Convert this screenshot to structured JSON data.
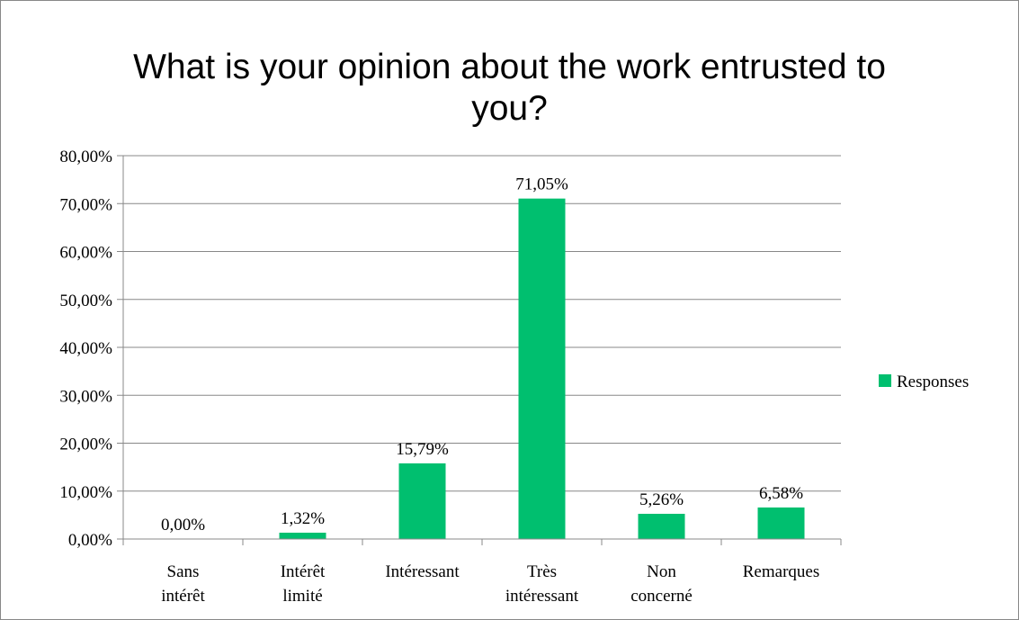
{
  "chart_data": {
    "type": "bar",
    "title": "What is your opinion about the work entrusted to you?",
    "categories": [
      "Sans intérêt",
      "Intérêt limité",
      "Intéressant",
      "Très intéressant",
      "Non concerné",
      "Remarques"
    ],
    "series": [
      {
        "name": "Responses",
        "color": "#00bf6f",
        "values": [
          0,
          1.32,
          15.79,
          71.05,
          5.26,
          6.58
        ],
        "value_labels": [
          "0,00%",
          "1,32%",
          "15,79%",
          "71,05%",
          "5,26%",
          "6,58%"
        ]
      }
    ],
    "ylim": [
      0,
      80
    ],
    "yticks": [
      {
        "value": 0,
        "label": "0,00%"
      },
      {
        "value": 10,
        "label": "10,00%"
      },
      {
        "value": 20,
        "label": "20,00%"
      },
      {
        "value": 30,
        "label": "30,00%"
      },
      {
        "value": 40,
        "label": "40,00%"
      },
      {
        "value": 50,
        "label": "50,00%"
      },
      {
        "value": 60,
        "label": "60,00%"
      },
      {
        "value": 70,
        "label": "70,00%"
      },
      {
        "value": 80,
        "label": "80,00%"
      }
    ],
    "grid": true,
    "legend": "right"
  }
}
